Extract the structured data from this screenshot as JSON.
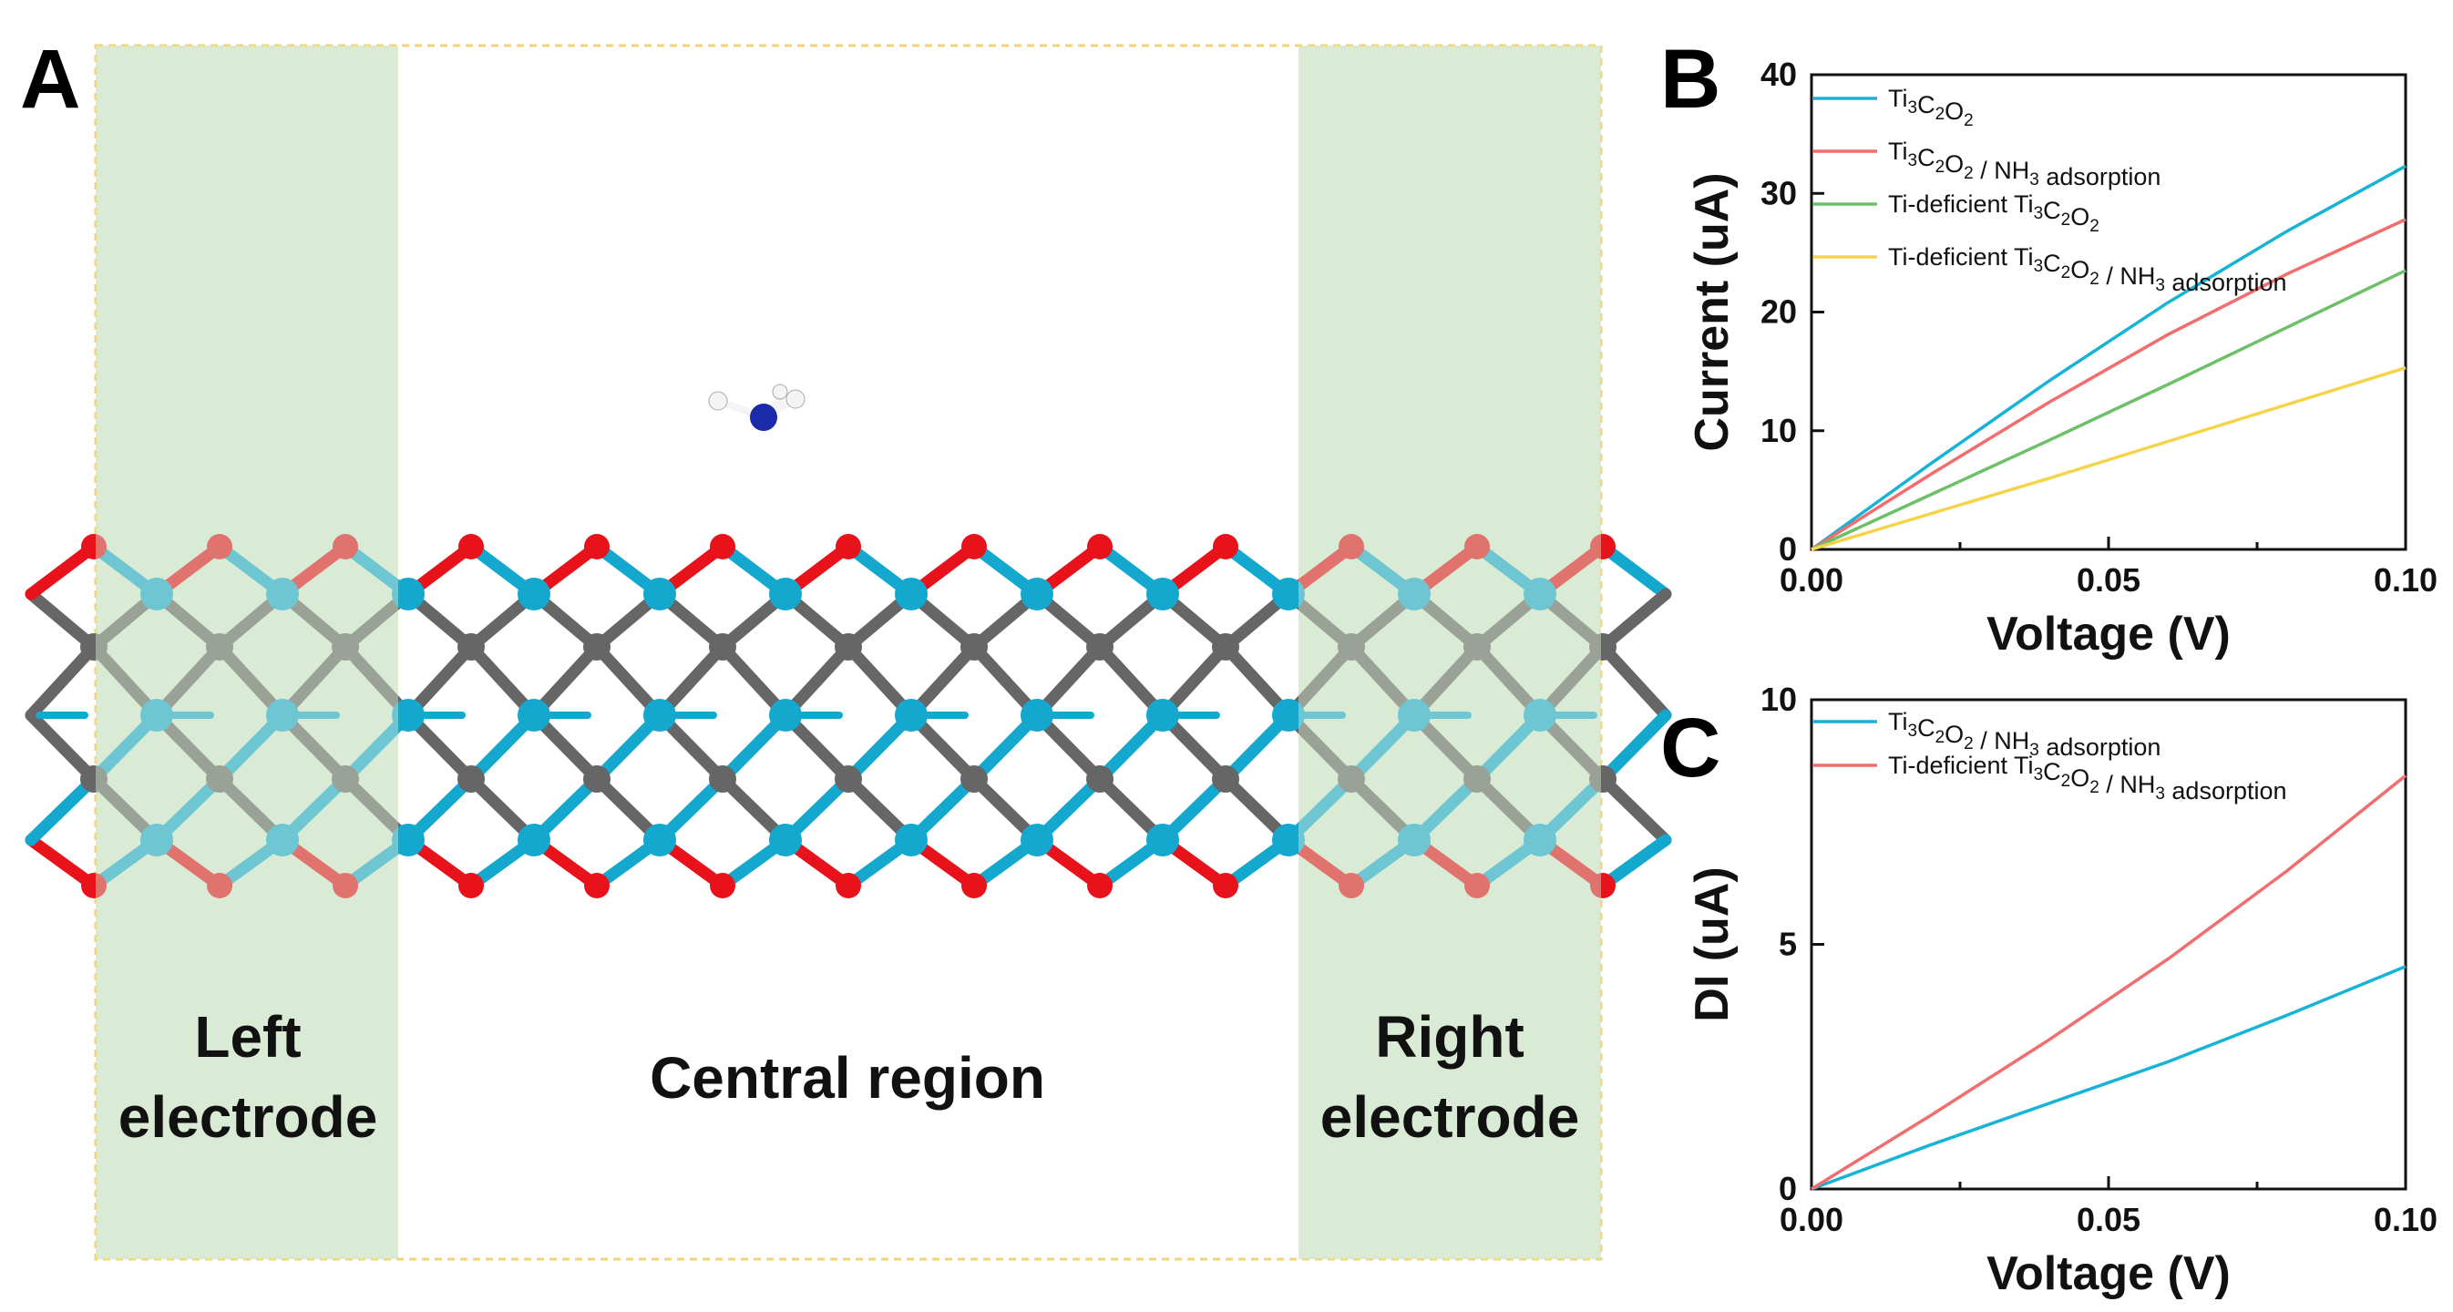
{
  "panel_a": {
    "letter": "A",
    "left_label_line1": "Left",
    "left_label_line2": "electrode",
    "center_label": "Central region",
    "right_label_line1": "Right",
    "right_label_line2": "electrode",
    "colors": {
      "electrode_fill": "#d9ecd4",
      "border": "#f2d37a",
      "titanium": "#15a8cf",
      "oxygen": "#e8121b",
      "carbon": "#666666",
      "nitrogen": "#1a2aa8",
      "hydrogen": "#f4f4f4"
    }
  },
  "chart_data": [
    {
      "panel": "B",
      "type": "line",
      "title": "",
      "xlabel": "Voltage (V)",
      "ylabel": "Current (uA)",
      "xlim": [
        0.0,
        0.1
      ],
      "ylim": [
        0,
        40
      ],
      "xticks": [
        "0.00",
        "0.05",
        "0.10"
      ],
      "yticks": [
        "0",
        "10",
        "20",
        "30",
        "40"
      ],
      "legend_position": "top-left",
      "series": [
        {
          "name": "Ti3C2O2",
          "label_parts": [
            [
              "Ti",
              ""
            ],
            [
              "3",
              "sub"
            ],
            [
              "C",
              ""
            ],
            [
              "2",
              "sub"
            ],
            [
              "O",
              ""
            ],
            [
              "2",
              "sub"
            ]
          ],
          "color": "#17b3d6",
          "x": [
            0,
            0.02,
            0.04,
            0.06,
            0.08,
            0.1
          ],
          "y": [
            0,
            7.2,
            14.2,
            20.8,
            26.8,
            32.3
          ]
        },
        {
          "name": "Ti3C2O2 / NH3 adsorption",
          "label_parts": [
            [
              "Ti",
              ""
            ],
            [
              "3",
              "sub"
            ],
            [
              "C",
              ""
            ],
            [
              "2",
              "sub"
            ],
            [
              "O",
              ""
            ],
            [
              "2",
              "sub"
            ],
            [
              " / NH",
              ""
            ],
            [
              "3",
              "sub"
            ],
            [
              " adsorption",
              ""
            ]
          ],
          "color": "#f26d6d",
          "x": [
            0,
            0.02,
            0.04,
            0.06,
            0.08,
            0.1
          ],
          "y": [
            0,
            6.3,
            12.4,
            18.1,
            23.2,
            27.8
          ]
        },
        {
          "name": "Ti-deficient Ti3C2O2",
          "label_parts": [
            [
              "Ti-deficient Ti",
              ""
            ],
            [
              "3",
              "sub"
            ],
            [
              "C",
              ""
            ],
            [
              "2",
              "sub"
            ],
            [
              "O",
              ""
            ],
            [
              "2",
              "sub"
            ]
          ],
          "color": "#6dbf6a",
          "x": [
            0,
            0.02,
            0.04,
            0.06,
            0.08,
            0.1
          ],
          "y": [
            0,
            4.6,
            9.2,
            13.9,
            18.7,
            23.5
          ]
        },
        {
          "name": "Ti-deficient Ti3C2O2 / NH3 adsorption",
          "label_parts": [
            [
              "Ti-deficient Ti",
              ""
            ],
            [
              "3",
              "sub"
            ],
            [
              "C",
              ""
            ],
            [
              "2",
              "sub"
            ],
            [
              "O",
              ""
            ],
            [
              "2",
              "sub"
            ],
            [
              " / NH",
              ""
            ],
            [
              "3",
              "sub"
            ],
            [
              " adsorption",
              ""
            ]
          ],
          "color": "#f5d44b",
          "x": [
            0,
            0.02,
            0.04,
            0.06,
            0.08,
            0.1
          ],
          "y": [
            0,
            3.0,
            6.0,
            9.1,
            12.2,
            15.3
          ]
        }
      ]
    },
    {
      "panel": "C",
      "type": "line",
      "title": "",
      "xlabel": "Voltage (V)",
      "ylabel": "DI (uA)",
      "xlim": [
        0.0,
        0.1
      ],
      "ylim": [
        0,
        10
      ],
      "xticks": [
        "0.00",
        "0.05",
        "0.10"
      ],
      "yticks": [
        "0",
        "5",
        "10"
      ],
      "legend_position": "top-left",
      "series": [
        {
          "name": "Ti3C2O2 / NH3 adsorption",
          "label_parts": [
            [
              "Ti",
              ""
            ],
            [
              "3",
              "sub"
            ],
            [
              "C",
              ""
            ],
            [
              "2",
              "sub"
            ],
            [
              "O",
              ""
            ],
            [
              "2",
              "sub"
            ],
            [
              " / NH",
              ""
            ],
            [
              "3",
              "sub"
            ],
            [
              " adsorption",
              ""
            ]
          ],
          "color": "#17b3d6",
          "x": [
            0,
            0.02,
            0.04,
            0.06,
            0.08,
            0.1
          ],
          "y": [
            0,
            0.9,
            1.75,
            2.6,
            3.55,
            4.55
          ]
        },
        {
          "name": "Ti-deficient Ti3C2O2 / NH3 adsorption",
          "label_parts": [
            [
              "Ti-deficient Ti",
              ""
            ],
            [
              "3",
              "sub"
            ],
            [
              "C",
              ""
            ],
            [
              "2",
              "sub"
            ],
            [
              "O",
              ""
            ],
            [
              "2",
              "sub"
            ],
            [
              " / NH",
              ""
            ],
            [
              "3",
              "sub"
            ],
            [
              " adsorption",
              ""
            ]
          ],
          "color": "#f26d6d",
          "x": [
            0,
            0.02,
            0.04,
            0.06,
            0.08,
            0.1
          ],
          "y": [
            0,
            1.5,
            3.05,
            4.7,
            6.5,
            8.45
          ]
        }
      ]
    }
  ]
}
